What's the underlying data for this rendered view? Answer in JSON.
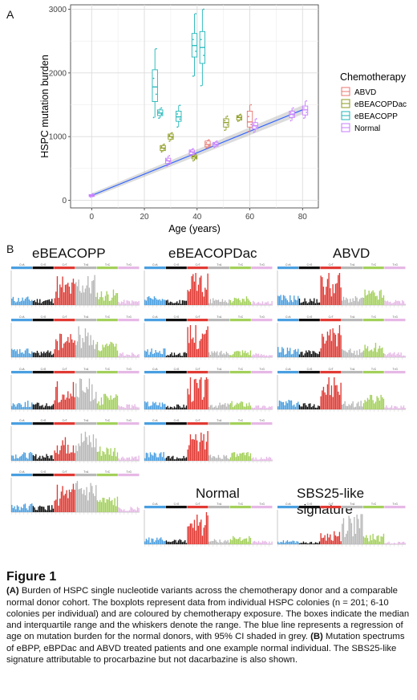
{
  "panel_a_label": "A",
  "panel_b_label": "B",
  "chart_data": {
    "type": "box",
    "xlabel": "Age (years)",
    "ylabel": "HSPC mutation burden",
    "xlim": [
      -8,
      86
    ],
    "ylim": [
      -120,
      3070
    ],
    "xticks": [
      0,
      20,
      40,
      60,
      80
    ],
    "yticks": [
      0,
      1000,
      2000,
      3000
    ],
    "grid": true,
    "legend": {
      "title": "Chemotherapy",
      "position": "right"
    },
    "regression": {
      "x0": 0,
      "y0": 75,
      "x1": 80,
      "y1": 1420,
      "ci_shaded": true
    },
    "series": [
      {
        "name": "ABVD",
        "color": "#e8766d",
        "boxes": [
          {
            "x": 44,
            "q1": 840,
            "median": 875,
            "q3": 930,
            "min": 820,
            "max": 950
          },
          {
            "x": 60,
            "q1": 1150,
            "median": 1230,
            "q3": 1400,
            "min": 1080,
            "max": 1500
          }
        ]
      },
      {
        "name": "eBEACOPDac",
        "color": "#8c9a1e",
        "boxes": [
          {
            "x": 27,
            "q1": 780,
            "median": 820,
            "q3": 860,
            "min": 760,
            "max": 880
          },
          {
            "x": 30,
            "q1": 960,
            "median": 1000,
            "q3": 1040,
            "min": 930,
            "max": 1060
          },
          {
            "x": 39,
            "q1": 650,
            "median": 680,
            "q3": 700,
            "min": 620,
            "max": 720
          },
          {
            "x": 51,
            "q1": 1150,
            "median": 1220,
            "q3": 1280,
            "min": 1100,
            "max": 1320
          },
          {
            "x": 56,
            "q1": 1260,
            "median": 1300,
            "q3": 1330,
            "min": 1240,
            "max": 1350
          }
        ]
      },
      {
        "name": "eBEACOPP",
        "color": "#21b5b8",
        "boxes": [
          {
            "x": 24,
            "q1": 1550,
            "median": 1780,
            "q3": 2050,
            "min": 1300,
            "max": 2380
          },
          {
            "x": 26,
            "q1": 1330,
            "median": 1370,
            "q3": 1420,
            "min": 1290,
            "max": 1450
          },
          {
            "x": 33,
            "q1": 1240,
            "median": 1310,
            "q3": 1400,
            "min": 1150,
            "max": 1490
          },
          {
            "x": 39,
            "q1": 2250,
            "median": 2430,
            "q3": 2620,
            "min": 1950,
            "max": 2930
          },
          {
            "x": 42,
            "q1": 2150,
            "median": 2400,
            "q3": 2650,
            "min": 1800,
            "max": 3000
          }
        ]
      },
      {
        "name": "Normal",
        "color": "#c77cff",
        "boxes": [
          {
            "x": 0,
            "q1": 60,
            "median": 75,
            "q3": 90,
            "min": 50,
            "max": 100
          },
          {
            "x": 29,
            "q1": 580,
            "median": 620,
            "q3": 660,
            "min": 540,
            "max": 700
          },
          {
            "x": 38,
            "q1": 720,
            "median": 760,
            "q3": 790,
            "min": 700,
            "max": 810
          },
          {
            "x": 47,
            "q1": 850,
            "median": 880,
            "q3": 910,
            "min": 830,
            "max": 930
          },
          {
            "x": 62,
            "q1": 1120,
            "median": 1170,
            "q3": 1220,
            "min": 1070,
            "max": 1280
          },
          {
            "x": 76,
            "q1": 1300,
            "median": 1350,
            "q3": 1400,
            "min": 1250,
            "max": 1450
          },
          {
            "x": 81,
            "q1": 1340,
            "median": 1420,
            "q3": 1480,
            "min": 1290,
            "max": 1560
          }
        ]
      }
    ]
  },
  "spectra": {
    "groups": [
      {
        "name": "eBEACOPP",
        "count": 5
      },
      {
        "name": "eBEACOPDac",
        "count": 4
      },
      {
        "name": "ABVD",
        "count": 3
      },
      {
        "name": "Normal",
        "count": 1
      },
      {
        "name": "SBS25-like signature",
        "count": 1
      }
    ],
    "mutation_classes": [
      "C>A",
      "C>G",
      "C>T",
      "T>A",
      "T>C",
      "T>G"
    ],
    "class_colors": [
      "#4a9fe0",
      "#111111",
      "#e03a34",
      "#b8b8b8",
      "#a3d05a",
      "#e6b8e6"
    ]
  },
  "caption": {
    "title": "Figure 1",
    "a_label": "(A)",
    "a_text": " Burden of HSPC single nucleotide variants across the chemotherapy donor and a comparable normal donor cohort. The boxplots represent data from individual HSPC colonies (n = 201; 6-10 colonies per individual) and are coloured by chemotherapy exposure. The boxes indicate the median and interquartile range and the whiskers denote the range. The blue line represents a regression of age on mutation burden for the normal donors, with 95% CI shaded in grey. ",
    "b_label": "(B)",
    "b_text": " Mutation spectrums of eBPP, eBPDac and ABVD treated patients and one example normal individual. The SBS25-like signature attributable to procarbazine but not dacarbazine is also shown."
  }
}
